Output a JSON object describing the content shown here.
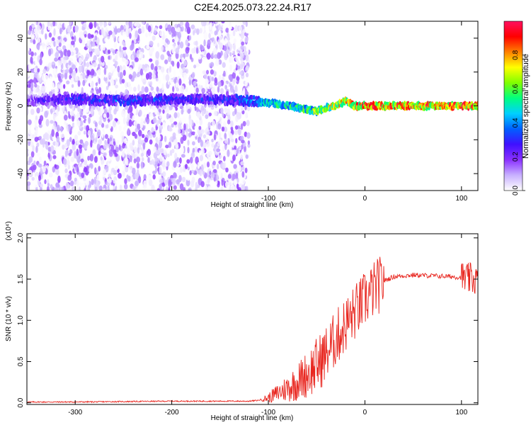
{
  "title": "C2E4.2025.073.22.24.R17",
  "colorbar": {
    "label": "Normalized spectral amplitude",
    "range": [
      0,
      1
    ],
    "ticks": [
      "0.0",
      "0.2",
      "0.4",
      "0.6",
      "0.8"
    ],
    "tick_values": [
      0,
      0.2,
      0.4,
      0.6,
      0.8
    ],
    "colormap": [
      "#ffffff",
      "#c8b0ff",
      "#8a30ff",
      "#4010ff",
      "#0060ff",
      "#00d0ff",
      "#00ff80",
      "#80ff00",
      "#ffff00",
      "#ff8000",
      "#ff0000",
      "#ff1060"
    ]
  },
  "chart_data": [
    {
      "type": "heatmap",
      "name": "spectrogram",
      "xlabel": "Height of straight line (km)",
      "ylabel": "Frequency (Hz)",
      "xlim": [
        -350,
        117
      ],
      "ylim": [
        -50,
        50
      ],
      "xticks": [
        -300,
        -200,
        -100,
        0,
        100
      ],
      "xtick_labels": [
        "-300",
        "-200",
        "-100",
        "0",
        "100"
      ],
      "yticks": [
        -40,
        -20,
        0,
        20,
        40
      ],
      "ytick_labels": [
        "-40",
        "-20",
        "0",
        "20",
        "40"
      ],
      "noise_region_x": [
        -350,
        -120
      ],
      "signal_ridge": {
        "x": [
          -350,
          -300,
          -250,
          -200,
          -150,
          -120,
          -100,
          -80,
          -60,
          -50,
          -40,
          -30,
          -20,
          -10,
          0,
          50,
          117
        ],
        "y": [
          3,
          4,
          3,
          4,
          4,
          3,
          2,
          0,
          -2,
          -3,
          -1,
          0,
          3,
          0,
          0,
          0,
          0
        ],
        "amplitude": [
          0.25,
          0.35,
          0.4,
          0.35,
          0.35,
          0.45,
          0.55,
          0.6,
          0.65,
          0.7,
          0.75,
          0.8,
          0.85,
          0.9,
          0.95,
          0.95,
          0.95
        ]
      },
      "grid": false
    },
    {
      "type": "line",
      "name": "snr",
      "xlabel": "Height of straight line (km)",
      "ylabel": "SNR (10 * v/v)",
      "y_multiplier_label": "(x10⁴)",
      "xlim": [
        -350,
        117
      ],
      "ylim": [
        -0.02,
        2.05
      ],
      "xticks": [
        -300,
        -200,
        -100,
        0,
        100
      ],
      "xtick_labels": [
        "-300",
        "-200",
        "-100",
        "0",
        "100"
      ],
      "yticks": [
        0.0,
        0.5,
        1.0,
        1.5,
        2.0
      ],
      "ytick_labels": [
        "0.0",
        "0.5",
        "1.0",
        "1.5",
        "2.0"
      ],
      "series": [
        {
          "color": "#e8261f",
          "x": [
            -350,
            -300,
            -250,
            -200,
            -150,
            -120,
            -110,
            -100,
            -90,
            -80,
            -70,
            -60,
            -50,
            -40,
            -30,
            -20,
            -10,
            0,
            10,
            20,
            30,
            50,
            70,
            90,
            100,
            105,
            110,
            117
          ],
          "y": [
            0.01,
            0.01,
            0.015,
            0.02,
            0.02,
            0.02,
            0.03,
            0.06,
            0.12,
            0.18,
            0.25,
            0.35,
            0.45,
            0.6,
            0.78,
            0.95,
            1.1,
            1.25,
            1.38,
            1.48,
            1.53,
            1.55,
            1.54,
            1.53,
            1.52,
            1.5,
            1.5,
            1.49
          ]
        }
      ],
      "grid": false
    }
  ]
}
